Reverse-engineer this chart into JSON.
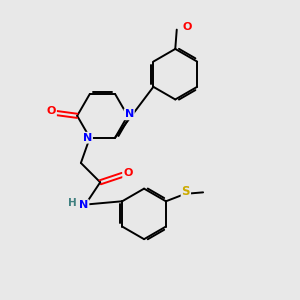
{
  "background_color": "#e8e8e8",
  "bond_color": "#000000",
  "atom_colors": {
    "N": "#0000ff",
    "O": "#ff0000",
    "S": "#ccaa00",
    "H": "#408080",
    "C": "#000000"
  },
  "figsize": [
    3.0,
    3.0
  ],
  "dpi": 100
}
